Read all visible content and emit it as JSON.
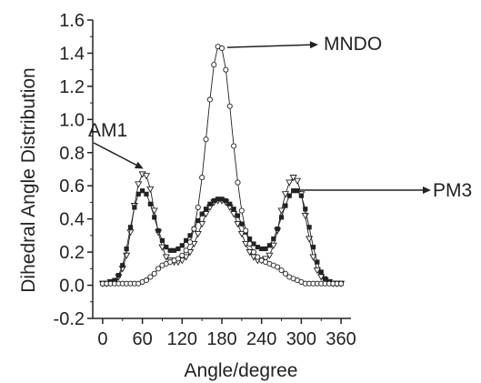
{
  "chart_data": {
    "type": "scatter",
    "title": "",
    "xlabel": "Angle/degree",
    "ylabel": "Dihedral Angle Distribution",
    "xlim": [
      -15,
      375
    ],
    "ylim": [
      -0.2,
      1.6
    ],
    "xticks": [
      0,
      60,
      120,
      180,
      240,
      300,
      360
    ],
    "yticks": [
      -0.2,
      0.0,
      0.2,
      0.4,
      0.6,
      0.8,
      1.0,
      1.2,
      1.4,
      1.6
    ],
    "xtick_labels": [
      "0",
      "60",
      "120",
      "180",
      "240",
      "300",
      "360"
    ],
    "ytick_labels": [
      "-0.2",
      "0.0",
      "0.2",
      "0.4",
      "0.6",
      "0.8",
      "1.0",
      "1.2",
      "1.4",
      "1.6"
    ],
    "grid": false,
    "legend": "none",
    "series": [
      {
        "name": "AM1",
        "marker": "open-triangle-down",
        "color": "#222222",
        "x": [
          0,
          6,
          12,
          18,
          24,
          30,
          36,
          42,
          48,
          54,
          60,
          66,
          72,
          78,
          84,
          90,
          96,
          102,
          108,
          114,
          120,
          126,
          132,
          138,
          144,
          150,
          156,
          162,
          168,
          174,
          180,
          186,
          192,
          198,
          204,
          210,
          216,
          222,
          228,
          234,
          240,
          246,
          252,
          258,
          264,
          270,
          276,
          282,
          288,
          294,
          300,
          306,
          312,
          318,
          324,
          330,
          336,
          342,
          348,
          354,
          360
        ],
        "y": [
          0.01,
          0.01,
          0.02,
          0.02,
          0.05,
          0.1,
          0.18,
          0.32,
          0.48,
          0.61,
          0.67,
          0.66,
          0.58,
          0.45,
          0.32,
          0.23,
          0.17,
          0.15,
          0.14,
          0.14,
          0.15,
          0.17,
          0.2,
          0.25,
          0.31,
          0.37,
          0.43,
          0.47,
          0.5,
          0.51,
          0.51,
          0.5,
          0.47,
          0.43,
          0.37,
          0.31,
          0.25,
          0.2,
          0.17,
          0.15,
          0.15,
          0.16,
          0.18,
          0.24,
          0.33,
          0.45,
          0.55,
          0.62,
          0.65,
          0.63,
          0.55,
          0.42,
          0.28,
          0.17,
          0.09,
          0.05,
          0.03,
          0.02,
          0.01,
          0.01,
          0.01
        ]
      },
      {
        "name": "PM3",
        "marker": "filled-square",
        "color": "#222222",
        "x": [
          0,
          6,
          12,
          18,
          24,
          30,
          36,
          42,
          48,
          54,
          60,
          66,
          72,
          78,
          84,
          90,
          96,
          102,
          108,
          114,
          120,
          126,
          132,
          138,
          144,
          150,
          156,
          162,
          168,
          174,
          180,
          186,
          192,
          198,
          204,
          210,
          216,
          222,
          228,
          234,
          240,
          246,
          252,
          258,
          264,
          270,
          276,
          282,
          288,
          294,
          300,
          306,
          312,
          318,
          324,
          330,
          336,
          342,
          348,
          354,
          360
        ],
        "y": [
          0.01,
          0.01,
          0.02,
          0.03,
          0.06,
          0.12,
          0.22,
          0.35,
          0.47,
          0.55,
          0.57,
          0.55,
          0.49,
          0.41,
          0.33,
          0.27,
          0.23,
          0.21,
          0.21,
          0.22,
          0.24,
          0.27,
          0.3,
          0.34,
          0.39,
          0.43,
          0.46,
          0.49,
          0.51,
          0.52,
          0.52,
          0.51,
          0.49,
          0.46,
          0.42,
          0.37,
          0.32,
          0.28,
          0.25,
          0.23,
          0.22,
          0.22,
          0.24,
          0.28,
          0.34,
          0.41,
          0.48,
          0.54,
          0.57,
          0.57,
          0.54,
          0.46,
          0.35,
          0.23,
          0.14,
          0.08,
          0.04,
          0.02,
          0.01,
          0.01,
          0.01
        ]
      },
      {
        "name": "MNDO",
        "marker": "open-circle",
        "color": "#222222",
        "x": [
          0,
          6,
          12,
          18,
          24,
          30,
          36,
          42,
          48,
          54,
          60,
          66,
          72,
          78,
          84,
          90,
          96,
          102,
          108,
          114,
          120,
          126,
          132,
          138,
          144,
          150,
          156,
          162,
          168,
          174,
          180,
          186,
          192,
          198,
          204,
          210,
          216,
          222,
          228,
          234,
          240,
          246,
          252,
          258,
          264,
          270,
          276,
          282,
          288,
          294,
          300,
          306,
          312,
          318,
          324,
          330,
          336,
          342,
          348,
          354,
          360
        ],
        "y": [
          0.01,
          0.01,
          0.01,
          0.01,
          0.01,
          0.01,
          0.01,
          0.01,
          0.01,
          0.01,
          0.02,
          0.03,
          0.05,
          0.07,
          0.1,
          0.12,
          0.13,
          0.14,
          0.15,
          0.16,
          0.18,
          0.21,
          0.26,
          0.34,
          0.47,
          0.65,
          0.88,
          1.12,
          1.33,
          1.44,
          1.43,
          1.3,
          1.08,
          0.84,
          0.62,
          0.45,
          0.33,
          0.25,
          0.2,
          0.17,
          0.15,
          0.14,
          0.13,
          0.12,
          0.11,
          0.09,
          0.07,
          0.05,
          0.04,
          0.03,
          0.02,
          0.01,
          0.01,
          0.01,
          0.01,
          0.01,
          0.01,
          0.01,
          0.01,
          0.01,
          0.01
        ]
      }
    ],
    "annotations": [
      {
        "text": "MNDO",
        "series": "MNDO",
        "x": 180,
        "y": 1.44
      },
      {
        "text": "AM1",
        "series": "AM1",
        "x": 63,
        "y": 0.67
      },
      {
        "text": "PM3",
        "series": "PM3",
        "x": 291,
        "y": 0.6
      }
    ]
  }
}
